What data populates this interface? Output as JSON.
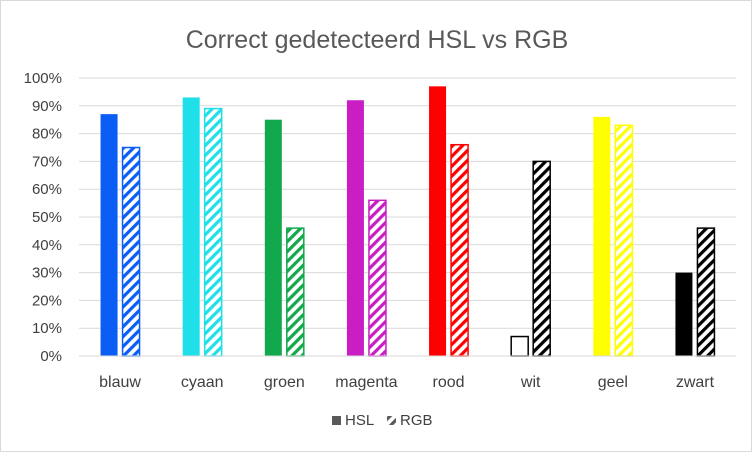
{
  "chart_data": {
    "type": "bar",
    "title": "Correct gedetecteerd HSL vs RGB",
    "categories": [
      "blauw",
      "cyaan",
      "groen",
      "magenta",
      "rood",
      "wit",
      "geel",
      "zwart"
    ],
    "category_colors": [
      "#0a5ef5",
      "#1fe0e8",
      "#12a84c",
      "#c81ec3",
      "#ff0000",
      "#000000",
      "#ffff00",
      "#000000"
    ],
    "series": [
      {
        "name": "HSL",
        "fill": "solid",
        "values": [
          87,
          93,
          85,
          92,
          97,
          7,
          86,
          30
        ]
      },
      {
        "name": "RGB",
        "fill": "hatched",
        "values": [
          75,
          89,
          46,
          56,
          76,
          70,
          83,
          46
        ]
      }
    ],
    "ylim": [
      0,
      100
    ],
    "yticks": [
      "0%",
      "10%",
      "20%",
      "30%",
      "40%",
      "50%",
      "60%",
      "70%",
      "80%",
      "90%",
      "100%"
    ],
    "ytick_values": [
      0,
      10,
      20,
      30,
      40,
      50,
      60,
      70,
      80,
      90,
      100
    ],
    "grid": true,
    "legend_position": "bottom",
    "legend_swatch_color": "#595959"
  }
}
